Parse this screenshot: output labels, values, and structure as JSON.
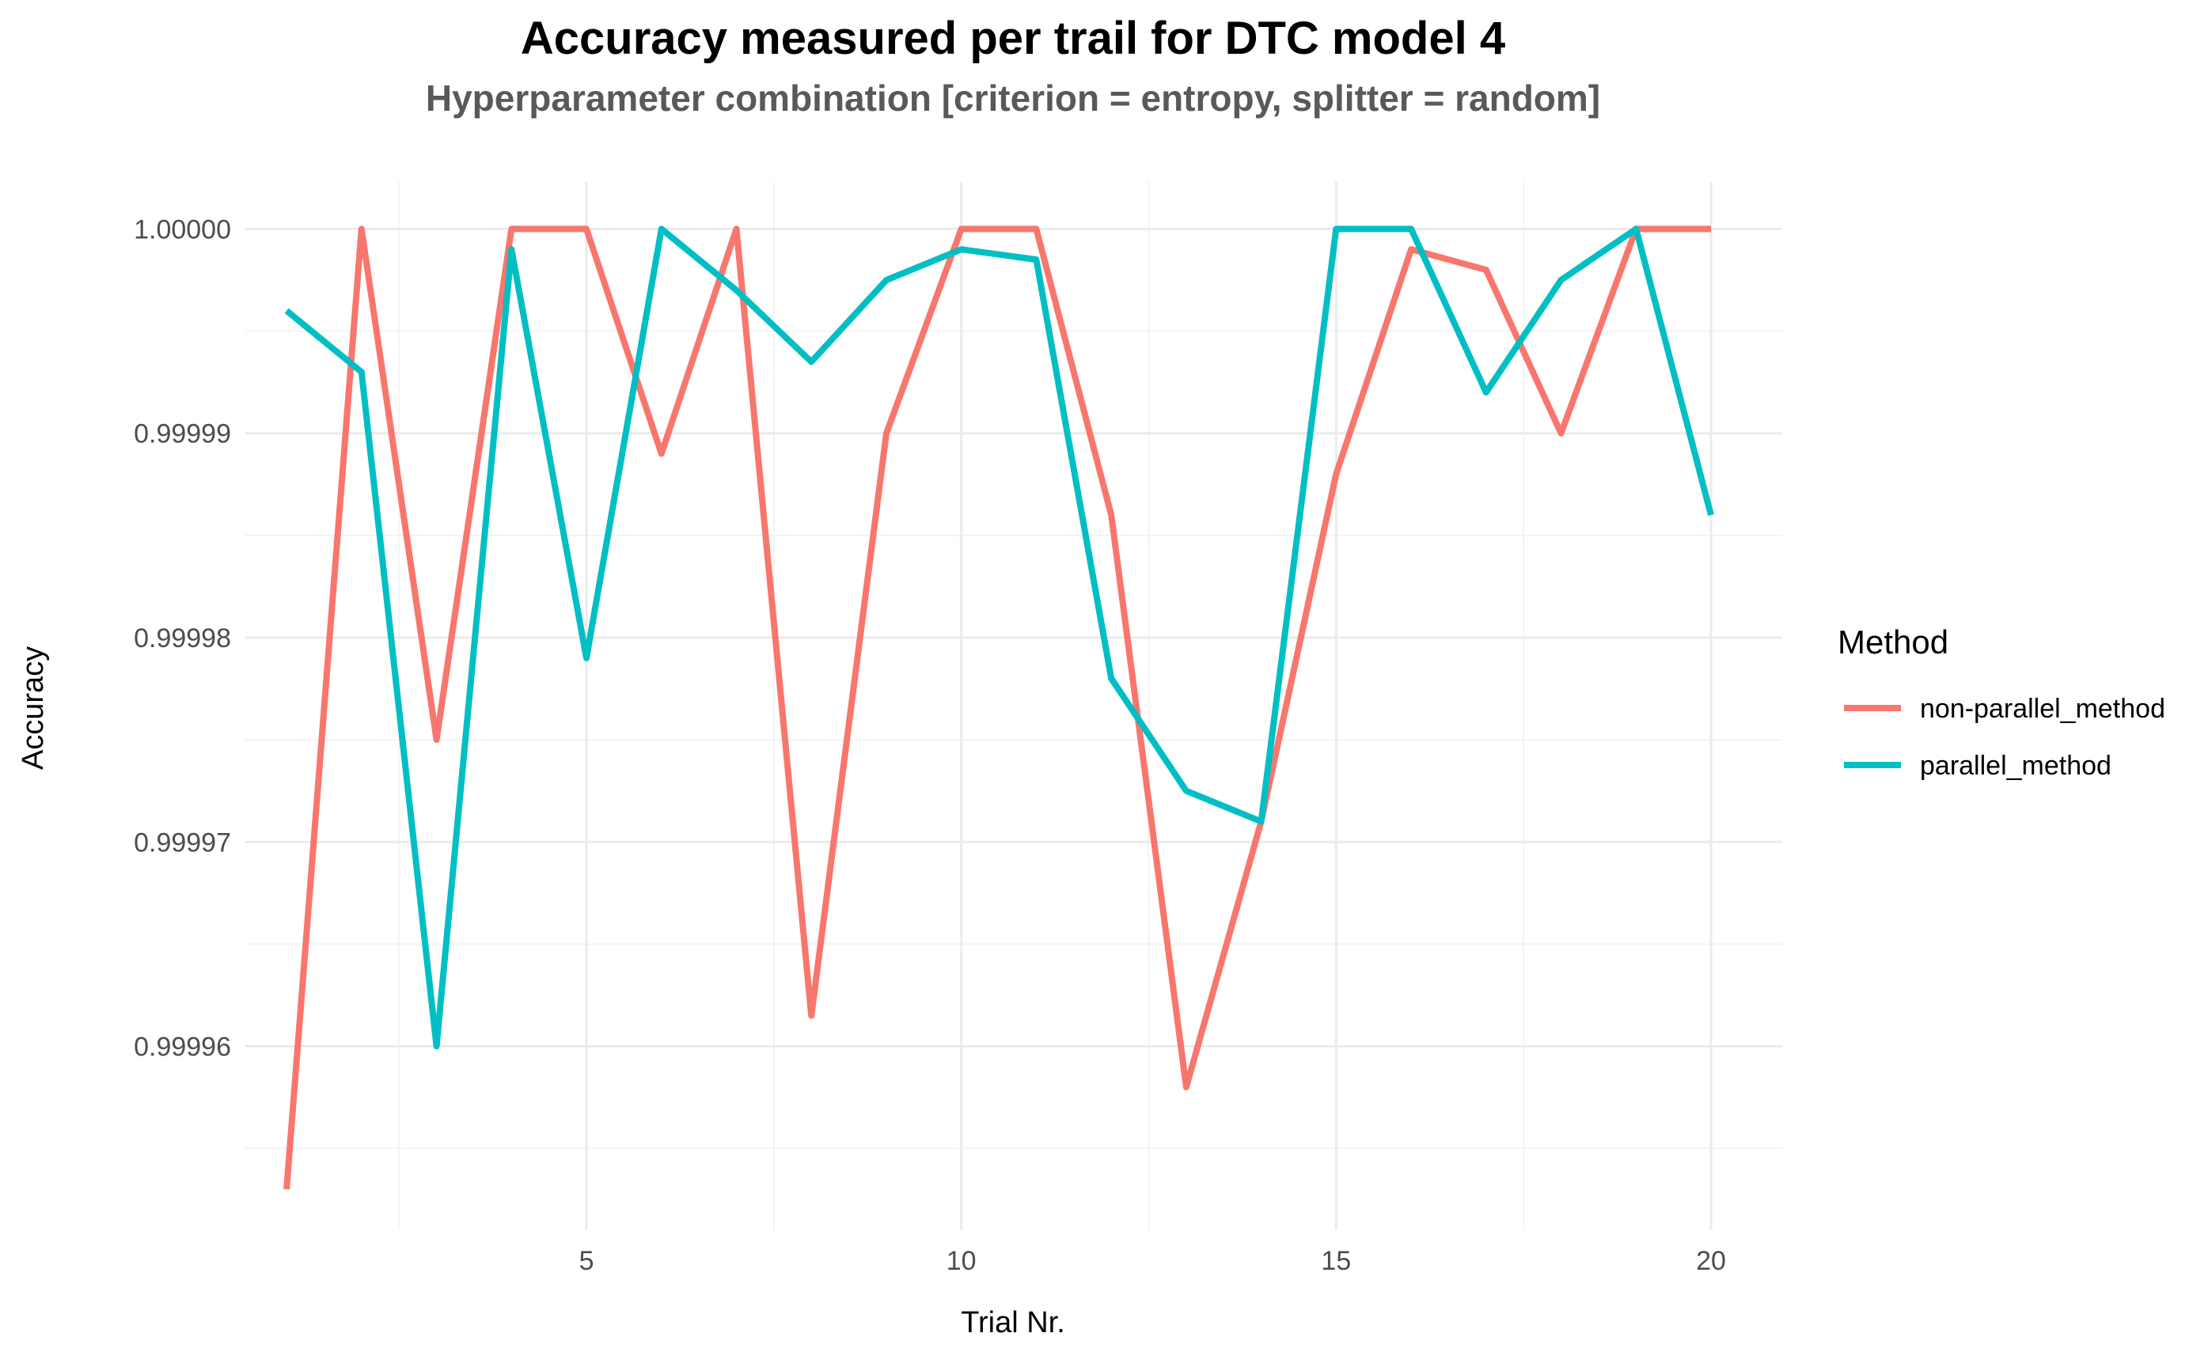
{
  "chart_data": {
    "type": "line",
    "title": "Accuracy measured per trail for DTC model 4",
    "subtitle": "Hyperparameter combination [criterion = entropy, splitter = random]",
    "xlabel": "Trial Nr.",
    "ylabel": "Accuracy",
    "x": [
      1,
      2,
      3,
      4,
      5,
      6,
      7,
      8,
      9,
      10,
      11,
      12,
      13,
      14,
      15,
      16,
      17,
      18,
      19,
      20
    ],
    "xlim": [
      0.45,
      20.95
    ],
    "ylim": [
      0.999951,
      1.0000023
    ],
    "x_ticks": [
      5,
      10,
      15,
      20
    ],
    "x_tick_labels": [
      "5",
      "10",
      "15",
      "20"
    ],
    "y_ticks": [
      0.99996,
      0.99997,
      0.99998,
      0.99999,
      1.0
    ],
    "y_tick_labels": [
      "0.99996",
      "0.99997",
      "0.99998",
      "0.99999",
      "1.00000"
    ],
    "grid": true,
    "legend": {
      "title": "Method",
      "position": "right"
    },
    "series": [
      {
        "name": "non-parallel_method",
        "color": "#F8766D",
        "values": [
          0.999953,
          1.0,
          0.999975,
          1.0,
          1.0,
          0.999989,
          1.0,
          0.9999615,
          0.99999,
          1.0,
          1.0,
          0.999986,
          0.999958,
          0.999971,
          0.999988,
          0.999999,
          0.999998,
          0.99999,
          1.0,
          1.0
        ]
      },
      {
        "name": "parallel_method",
        "color": "#00BFC4",
        "values": [
          0.999996,
          0.999993,
          0.99996,
          0.999999,
          0.999979,
          1.0,
          0.999997,
          0.9999935,
          0.9999975,
          0.999999,
          0.9999985,
          0.999978,
          0.9999725,
          0.999971,
          1.0,
          1.0,
          0.999992,
          0.9999975,
          1.0,
          0.999986
        ]
      }
    ]
  }
}
